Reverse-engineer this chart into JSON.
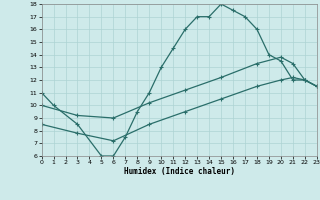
{
  "line1_x": [
    0,
    1,
    3,
    5,
    6,
    7,
    8,
    9,
    10,
    11,
    12,
    13,
    14,
    15,
    16,
    17,
    18,
    19,
    20,
    21,
    22,
    23
  ],
  "line1_y": [
    11,
    10,
    8.5,
    6.0,
    6.0,
    7.5,
    9.5,
    11.0,
    13.0,
    14.5,
    16.0,
    17.0,
    17.0,
    18.0,
    17.5,
    17.0,
    16.0,
    14.0,
    13.5,
    12.0,
    12.0,
    11.5
  ],
  "line2_x": [
    0,
    3,
    6,
    9,
    12,
    15,
    18,
    20,
    21,
    22,
    23
  ],
  "line2_y": [
    10.0,
    9.2,
    9.0,
    10.2,
    11.2,
    12.2,
    13.3,
    13.8,
    13.3,
    12.0,
    11.5
  ],
  "line3_x": [
    0,
    3,
    6,
    9,
    12,
    15,
    18,
    20,
    21,
    22,
    23
  ],
  "line3_y": [
    8.5,
    7.8,
    7.2,
    8.5,
    9.5,
    10.5,
    11.5,
    12.0,
    12.2,
    12.0,
    11.5
  ],
  "line_color": "#2a6e6a",
  "bg_color": "#ceeaea",
  "grid_color": "#aed4d4",
  "xlabel": "Humidex (Indice chaleur)",
  "ylim": [
    6,
    18
  ],
  "xlim": [
    0,
    23
  ],
  "yticks": [
    6,
    7,
    8,
    9,
    10,
    11,
    12,
    13,
    14,
    15,
    16,
    17,
    18
  ],
  "xticks": [
    0,
    1,
    2,
    3,
    4,
    5,
    6,
    7,
    8,
    9,
    10,
    11,
    12,
    13,
    14,
    15,
    16,
    17,
    18,
    19,
    20,
    21,
    22,
    23
  ],
  "xlabel_fontsize": 5.5,
  "tick_fontsize": 4.5
}
